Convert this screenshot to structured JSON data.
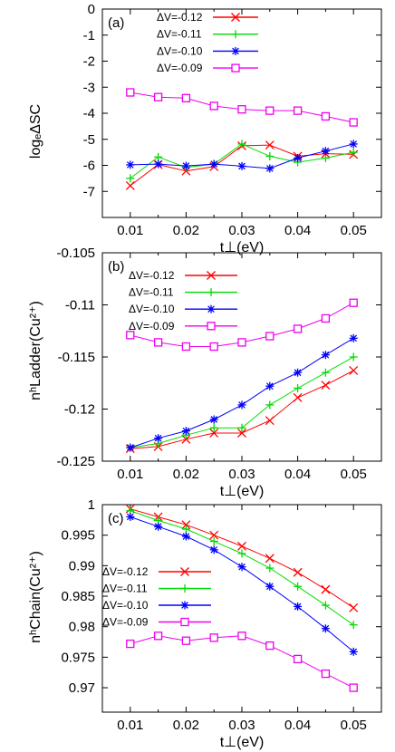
{
  "figure": {
    "panels": [
      {
        "tag": "(a)",
        "xlabel": "t⊥(eV)",
        "ylabel": "logₑΔSC"
      },
      {
        "tag": "(b)",
        "xlabel": "t⊥(eV)",
        "ylabel": "nʰLadder(Cu²⁺)"
      },
      {
        "tag": "(c)",
        "xlabel": "t⊥(eV)",
        "ylabel": "nʰChain(Cu²⁺)"
      }
    ]
  },
  "chart_data": [
    {
      "type": "line",
      "panel": "(a)",
      "xlabel": "t⊥(eV)",
      "ylabel": "logₑΔSC",
      "xlim": [
        0.005,
        0.055
      ],
      "ylim": [
        -8,
        0
      ],
      "xticks": [
        "0.01",
        "0.02",
        "0.03",
        "0.04",
        "0.05"
      ],
      "yticks": [
        "0",
        "-1",
        "-2",
        "-3",
        "-4",
        "-5",
        "-6",
        "-7"
      ],
      "legend_position": "top-center",
      "x": [
        0.01,
        0.015,
        0.02,
        0.025,
        0.03,
        0.035,
        0.04,
        0.045,
        0.05
      ],
      "series": [
        {
          "name": "ΔV=-0.12",
          "color": "#ff0000",
          "marker": "x",
          "values": [
            -6.78,
            -5.97,
            -6.22,
            -6.05,
            -5.25,
            -5.22,
            -5.65,
            -5.55,
            -5.58
          ]
        },
        {
          "name": "ΔV=-0.11",
          "color": "#00dd00",
          "marker": "plus",
          "values": [
            -6.5,
            -5.68,
            -6.08,
            -5.95,
            -5.18,
            -5.65,
            -5.88,
            -5.72,
            -5.5
          ]
        },
        {
          "name": "ΔV=-0.10",
          "color": "#0000ff",
          "marker": "star",
          "values": [
            -5.98,
            -5.95,
            -6.02,
            -5.95,
            -6.03,
            -6.12,
            -5.72,
            -5.45,
            -5.18
          ]
        },
        {
          "name": "ΔV=-0.09",
          "color": "#ee00ee",
          "marker": "square",
          "values": [
            -3.2,
            -3.38,
            -3.42,
            -3.72,
            -3.85,
            -3.9,
            -3.9,
            -4.12,
            -4.35
          ]
        }
      ]
    },
    {
      "type": "line",
      "panel": "(b)",
      "xlabel": "t⊥(eV)",
      "ylabel": "nʰLadder(Cu²⁺)",
      "xlim": [
        0.005,
        0.055
      ],
      "ylim": [
        -0.125,
        -0.105
      ],
      "xticks": [
        "0.01",
        "0.02",
        "0.03",
        "0.04",
        "0.05"
      ],
      "yticks": [
        "-0.105",
        "-0.11",
        "-0.115",
        "-0.12",
        "-0.125"
      ],
      "legend_position": "top-left",
      "x": [
        0.01,
        0.015,
        0.02,
        0.025,
        0.03,
        0.035,
        0.04,
        0.045,
        0.05
      ],
      "series": [
        {
          "name": "ΔV=-0.12",
          "color": "#ff0000",
          "marker": "x",
          "values": [
            -0.1238,
            -0.1236,
            -0.1229,
            -0.1223,
            -0.1223,
            -0.1211,
            -0.1189,
            -0.1177,
            -0.1163
          ]
        },
        {
          "name": "ΔV=-0.11",
          "color": "#00dd00",
          "marker": "plus",
          "values": [
            -0.1237,
            -0.1233,
            -0.1225,
            -0.1218,
            -0.1218,
            -0.1196,
            -0.118,
            -0.1165,
            -0.115
          ]
        },
        {
          "name": "ΔV=-0.10",
          "color": "#0000ff",
          "marker": "star",
          "values": [
            -0.1237,
            -0.1228,
            -0.1221,
            -0.121,
            -0.1196,
            -0.1178,
            -0.1165,
            -0.1148,
            -0.1132
          ]
        },
        {
          "name": "ΔV=-0.09",
          "color": "#ee00ee",
          "marker": "square",
          "values": [
            -0.1129,
            -0.1136,
            -0.114,
            -0.114,
            -0.1136,
            -0.113,
            -0.1123,
            -0.1113,
            -0.1098
          ]
        }
      ]
    },
    {
      "type": "line",
      "panel": "(c)",
      "xlabel": "t⊥(eV)",
      "ylabel": "nʰChain(Cu²⁺)",
      "xlim": [
        0.005,
        0.055
      ],
      "ylim": [
        0.966,
        1.0
      ],
      "xticks": [
        "0.01",
        "0.02",
        "0.03",
        "0.04",
        "0.05"
      ],
      "yticks": [
        "1",
        "0.995",
        "0.99",
        "0.985",
        "0.98",
        "0.975",
        "0.97"
      ],
      "legend_position": "left",
      "x": [
        0.01,
        0.015,
        0.02,
        0.025,
        0.03,
        0.035,
        0.04,
        0.045,
        0.05
      ],
      "series": [
        {
          "name": "ΔV=-0.12",
          "color": "#ff0000",
          "marker": "x",
          "values": [
            0.9993,
            0.998,
            0.9967,
            0.995,
            0.9932,
            0.9912,
            0.9889,
            0.9861,
            0.9831
          ]
        },
        {
          "name": "ΔV=-0.11",
          "color": "#00dd00",
          "marker": "plus",
          "values": [
            0.999,
            0.9974,
            0.996,
            0.994,
            0.992,
            0.9896,
            0.9866,
            0.9835,
            0.9803
          ]
        },
        {
          "name": "ΔV=-0.10",
          "color": "#0000ff",
          "marker": "star",
          "values": [
            0.998,
            0.9964,
            0.9948,
            0.9926,
            0.9898,
            0.9866,
            0.9833,
            0.9797,
            0.9759
          ]
        },
        {
          "name": "ΔV=-0.09",
          "color": "#ee00ee",
          "marker": "square",
          "values": [
            0.9772,
            0.9785,
            0.9777,
            0.9782,
            0.9785,
            0.9769,
            0.9747,
            0.9723,
            0.97
          ]
        }
      ]
    }
  ]
}
